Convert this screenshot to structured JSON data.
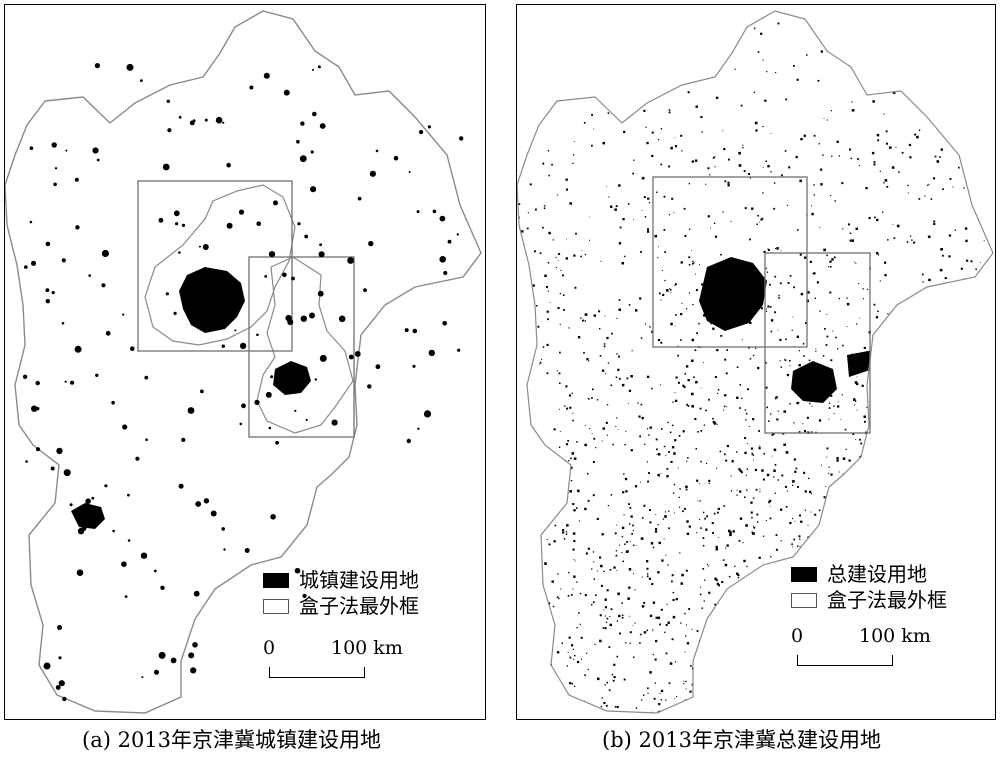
{
  "panels": [
    {
      "id": "a",
      "caption": "(a) 2013年京津冀城镇建设用地",
      "legend": {
        "filled_label": "城镇建设用地",
        "box_label": "盒子法最外框"
      },
      "scale": {
        "start": "0",
        "end": "100 km"
      }
    },
    {
      "id": "b",
      "caption": "(b) 2013年京津冀总建设用地",
      "legend": {
        "filled_label": "总建设用地",
        "box_label": "盒子法最外框"
      },
      "scale": {
        "start": "0",
        "end": "100 km"
      }
    }
  ],
  "colors": {
    "land_fill": "#ffffff",
    "boundary": "#8a8a8a",
    "built_up": "#000000",
    "box_outline": "#6f6f6f"
  }
}
